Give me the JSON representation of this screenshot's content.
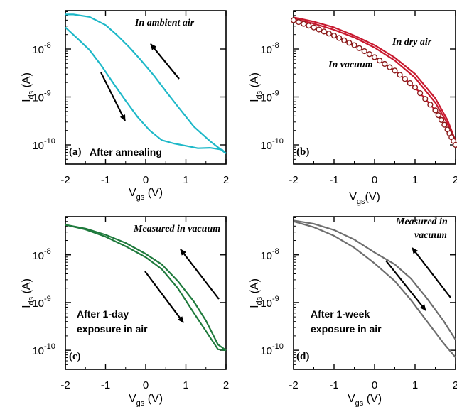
{
  "chart_data": [
    {
      "type": "line",
      "panel": "(a)",
      "xlabel": {
        "main": "V",
        "sub": "gs",
        "unit": " (V)"
      },
      "ylabel": {
        "main": "I",
        "sub": "ds",
        "unit": " (A)"
      },
      "xlim": [
        -2,
        2
      ],
      "ylim_log10": [
        -10.4,
        -7.2
      ],
      "y_scale": "log",
      "x_ticks": [
        "-2",
        "-1",
        "0",
        "1",
        "2"
      ],
      "y_ticks": [
        {
          "exp": -10,
          "label": "10",
          "sup": "-10"
        },
        {
          "exp": -9,
          "label": "10",
          "sup": "-9"
        },
        {
          "exp": -8,
          "label": "10",
          "sup": "-8"
        }
      ],
      "color": "#1db8c8",
      "annotations": [
        {
          "text": "In ambient air",
          "style": "italic"
        },
        {
          "text": "After annealing",
          "style": "bold"
        }
      ],
      "arrows": [
        {
          "direction": "up-left"
        },
        {
          "direction": "down-right"
        }
      ],
      "series": [
        {
          "x": [
            2.0,
            1.6,
            1.2,
            0.8,
            0.5,
            0.2,
            -0.1,
            -0.4,
            -0.7,
            -1.0,
            -1.4,
            -1.8,
            -2.0
          ],
          "log10_y": [
            -10.18,
            -9.92,
            -9.62,
            -9.2,
            -8.88,
            -8.55,
            -8.25,
            -7.97,
            -7.72,
            -7.5,
            -7.33,
            -7.28,
            -7.28
          ]
        },
        {
          "x": [
            -2.0,
            -1.7,
            -1.4,
            -1.1,
            -0.8,
            -0.5,
            -0.2,
            0.1,
            0.4,
            0.7,
            1.0,
            1.3,
            1.6,
            1.9,
            2.0
          ],
          "log10_y": [
            -7.55,
            -7.78,
            -8.02,
            -8.35,
            -8.72,
            -9.08,
            -9.42,
            -9.7,
            -9.9,
            -9.97,
            -10.02,
            -10.07,
            -10.06,
            -10.1,
            -10.18
          ]
        }
      ]
    },
    {
      "type": "line",
      "panel": "(b)",
      "xlabel": {
        "main": "V",
        "sub": "gs",
        "unit": "(V)"
      },
      "ylabel": {
        "main": "I",
        "sub": "ds",
        "unit": " (A)"
      },
      "xlim": [
        -2,
        2
      ],
      "ylim_log10": [
        -10.4,
        -7.2
      ],
      "y_scale": "log",
      "x_ticks": [
        "-2",
        "-1",
        "0",
        "1",
        "2"
      ],
      "y_ticks": [
        {
          "exp": -10,
          "label": "10",
          "sup": "-10"
        },
        {
          "exp": -9,
          "label": "10",
          "sup": "-9"
        },
        {
          "exp": -8,
          "label": "10",
          "sup": "-8"
        }
      ],
      "color": "#c8182e",
      "annotations": [
        {
          "text": "In dry air",
          "style": "italic"
        },
        {
          "text": "In vacuum",
          "style": "italic"
        }
      ],
      "series": [
        {
          "x": [
            -2.0,
            -1.5,
            -1.0,
            -0.5,
            0.0,
            0.5,
            1.0,
            1.5,
            1.8,
            2.0
          ],
          "log10_y": [
            -7.37,
            -7.47,
            -7.6,
            -7.76,
            -7.97,
            -8.24,
            -8.6,
            -9.12,
            -9.55,
            -9.95
          ]
        },
        {
          "x": [
            -2.0,
            -1.5,
            -1.0,
            -0.5,
            0.0,
            0.5,
            1.0,
            1.5,
            1.8,
            2.0
          ],
          "log10_y": [
            -7.34,
            -7.43,
            -7.55,
            -7.72,
            -7.92,
            -8.18,
            -8.52,
            -9.03,
            -9.48,
            -9.92
          ]
        },
        {
          "x": [
            -2.0,
            -1.5,
            -1.0,
            -0.5,
            0.0,
            0.5,
            1.0,
            1.5,
            1.8,
            2.0
          ],
          "log10_y": [
            -7.4,
            -7.55,
            -7.72,
            -7.92,
            -8.17,
            -8.45,
            -8.8,
            -9.28,
            -9.68,
            -10.0
          ],
          "markers": "open-circle"
        }
      ]
    },
    {
      "type": "line",
      "panel": "(c)",
      "xlabel": {
        "main": "V",
        "sub": "gs",
        "unit": " (V)"
      },
      "ylabel": {
        "main": "I",
        "sub": "ds",
        "unit": " (A)"
      },
      "xlim": [
        -2,
        2
      ],
      "ylim_log10": [
        -10.4,
        -7.2
      ],
      "y_scale": "log",
      "x_ticks": [
        "-2",
        "-1",
        "0",
        "1",
        "2"
      ],
      "y_ticks": [
        {
          "exp": -10,
          "label": "10",
          "sup": "-10"
        },
        {
          "exp": -9,
          "label": "10",
          "sup": "-9"
        },
        {
          "exp": -8,
          "label": "10",
          "sup": "-8"
        }
      ],
      "color": "#1e7a3c",
      "annotations": [
        {
          "text": "Measured in vacuum",
          "style": "italic"
        },
        {
          "text": "After 1-day",
          "style": "bold"
        },
        {
          "text": "exposure in air",
          "style": "bold"
        }
      ],
      "arrows": [
        {
          "direction": "up-left"
        },
        {
          "direction": "down-right"
        }
      ],
      "series": [
        {
          "x": [
            -2.0,
            -1.5,
            -1.0,
            -0.5,
            0.0,
            0.4,
            0.8,
            1.2,
            1.5,
            1.8,
            2.0
          ],
          "log10_y": [
            -7.37,
            -7.45,
            -7.58,
            -7.75,
            -7.98,
            -8.2,
            -8.55,
            -8.98,
            -9.38,
            -9.88,
            -10.0
          ]
        },
        {
          "x": [
            -2.0,
            -1.5,
            -1.0,
            -0.5,
            0.0,
            0.4,
            0.8,
            1.2,
            1.5,
            1.8,
            2.0
          ],
          "log10_y": [
            -7.37,
            -7.47,
            -7.62,
            -7.82,
            -8.05,
            -8.3,
            -8.7,
            -9.22,
            -9.6,
            -9.98,
            -10.0
          ]
        }
      ]
    },
    {
      "type": "line",
      "panel": "(d)",
      "xlabel": {
        "main": "V",
        "sub": "gs",
        "unit": " (V)"
      },
      "ylabel": {
        "main": "I",
        "sub": "ds",
        "unit": " (A)"
      },
      "xlim": [
        -2,
        2
      ],
      "ylim_log10": [
        -10.4,
        -7.2
      ],
      "y_scale": "log",
      "x_ticks": [
        "-2",
        "-1",
        "0",
        "1",
        "2"
      ],
      "y_ticks": [
        {
          "exp": -10,
          "label": "10",
          "sup": "-10"
        },
        {
          "exp": -9,
          "label": "10",
          "sup": "-9"
        },
        {
          "exp": -8,
          "label": "10",
          "sup": "-8"
        }
      ],
      "color": "#6e6e6e",
      "annotations": [
        {
          "text": "Measured in",
          "style": "italic"
        },
        {
          "text": "vacuum",
          "style": "italic"
        },
        {
          "text": "After 1-week",
          "style": "bold"
        },
        {
          "text": "exposure in air",
          "style": "bold"
        }
      ],
      "arrows": [
        {
          "direction": "up-left"
        },
        {
          "direction": "down-right"
        }
      ],
      "series": [
        {
          "x": [
            -2.0,
            -1.5,
            -1.0,
            -0.5,
            0.0,
            0.5,
            0.9,
            1.3,
            1.7,
            2.0
          ],
          "log10_y": [
            -7.28,
            -7.35,
            -7.48,
            -7.68,
            -7.95,
            -8.2,
            -8.5,
            -8.92,
            -9.38,
            -9.78
          ]
        },
        {
          "x": [
            -2.0,
            -1.5,
            -1.0,
            -0.5,
            0.0,
            0.5,
            0.9,
            1.3,
            1.7,
            2.0
          ],
          "log10_y": [
            -7.3,
            -7.42,
            -7.6,
            -7.85,
            -8.18,
            -8.55,
            -8.95,
            -9.4,
            -9.85,
            -10.15
          ]
        }
      ]
    }
  ]
}
